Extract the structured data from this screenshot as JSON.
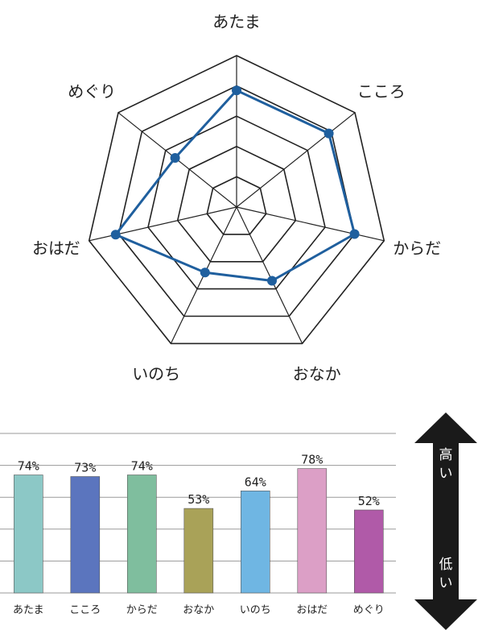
{
  "colors": {
    "radar_line": "#1f5f9e",
    "grid": "#222222",
    "bar_grid": "#9a9a9a",
    "arrow": "#1a1a1a",
    "bars": [
      "#8cc8c6",
      "#5b75be",
      "#7fbe9e",
      "#a9a258",
      "#6fb6e3",
      "#dc9fc6",
      "#b05aa8"
    ]
  },
  "chart_data": [
    {
      "type": "radar",
      "axes": [
        "あたま",
        "こころ",
        "からだ",
        "おなか",
        "いのち",
        "おはだ",
        "めぐり"
      ],
      "levels": 5,
      "max": 5,
      "values": [
        3.85,
        3.9,
        4.0,
        2.7,
        2.4,
        4.1,
        2.6
      ]
    },
    {
      "type": "bar",
      "categories": [
        "あたま",
        "こころ",
        "からだ",
        "おなか",
        "いのち",
        "おはだ",
        "めぐり"
      ],
      "values": [
        74,
        73,
        74,
        53,
        64,
        78,
        52
      ],
      "labels": [
        "74%",
        "73%",
        "74%",
        "53%",
        "64%",
        "78%",
        "52%"
      ],
      "ylim": [
        0,
        100
      ],
      "grid": true
    }
  ],
  "scale_arrow": {
    "high": "高\nい",
    "low": "低\nい",
    "icon": "double-arrow-vertical"
  }
}
